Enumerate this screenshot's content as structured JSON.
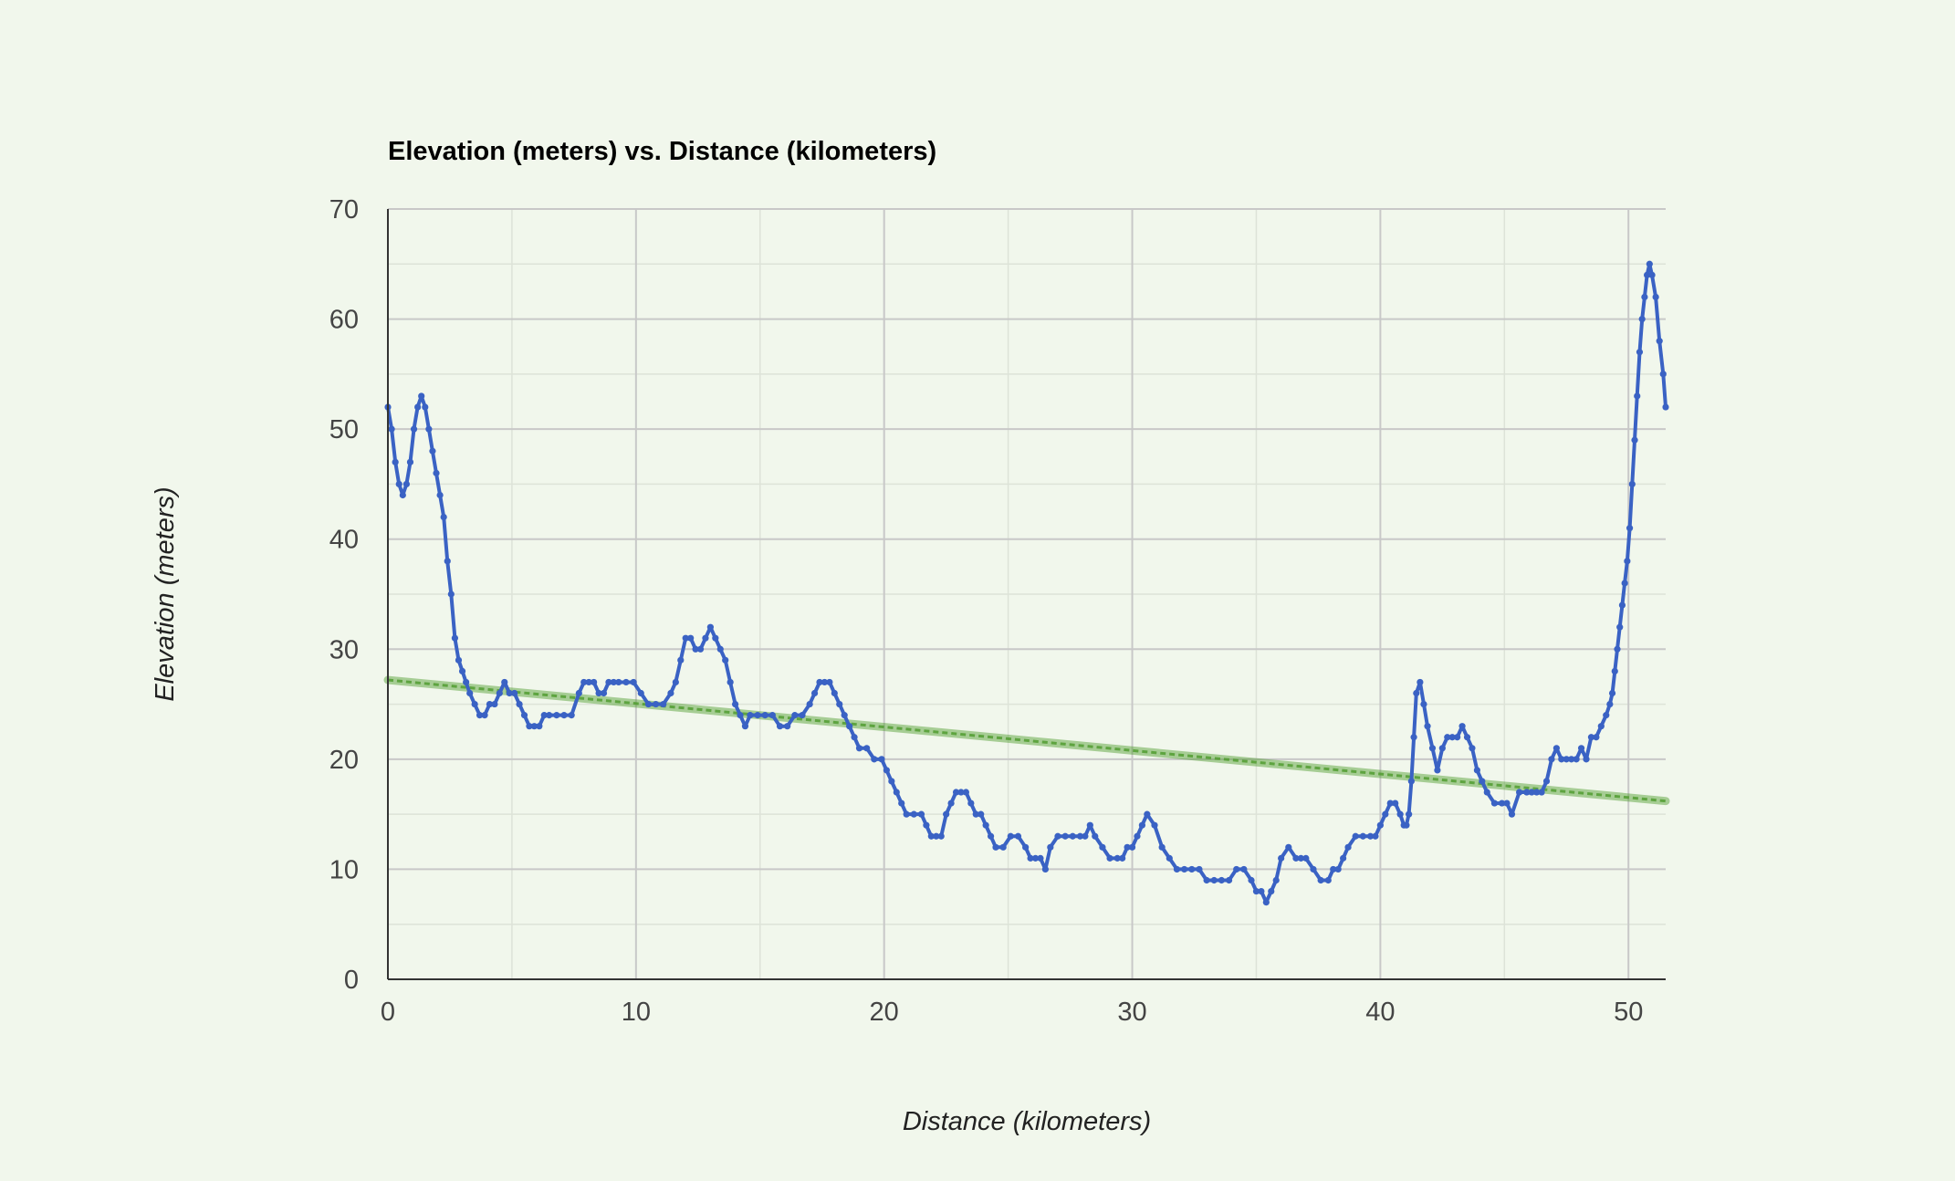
{
  "chart_data": {
    "type": "line",
    "title": "Elevation (meters) vs. Distance (kilometers)",
    "xlabel": "Distance (kilometers)",
    "ylabel": "Elevation (meters)",
    "xlim": [
      0,
      51.5
    ],
    "ylim": [
      0,
      70
    ],
    "x_ticks": [
      0,
      10,
      20,
      30,
      40,
      50
    ],
    "y_ticks": [
      0,
      10,
      20,
      30,
      40,
      50,
      60,
      70
    ],
    "grid": true,
    "legend": "none",
    "colors": {
      "series": "#3a62c4",
      "trendline": "#4c9a2a",
      "background": "#f1f7ec",
      "grid_major": "#c8c8c8",
      "grid_minor": "#dde3d8"
    },
    "series": [
      {
        "x": [
          0,
          0.15,
          0.3,
          0.45,
          0.6,
          0.75,
          0.9,
          1.05,
          1.2,
          1.35,
          1.5,
          1.65,
          1.8,
          1.95,
          2.1,
          2.25,
          2.4,
          2.55,
          2.7,
          2.85,
          3.0,
          3.15,
          3.3,
          3.5,
          3.7,
          3.9,
          4.1,
          4.3,
          4.5,
          4.7,
          4.9,
          5.1,
          5.3,
          5.5,
          5.7,
          5.9,
          6.1,
          6.3,
          6.5,
          6.8,
          7.1,
          7.4,
          7.7,
          7.9,
          8.1,
          8.3,
          8.5,
          8.7,
          8.9,
          9.1,
          9.3,
          9.6,
          9.9,
          10.2,
          10.5,
          10.8,
          11.1,
          11.4,
          11.6,
          11.8,
          12.0,
          12.2,
          12.4,
          12.6,
          12.8,
          13.0,
          13.2,
          13.4,
          13.6,
          13.8,
          14.0,
          14.2,
          14.4,
          14.6,
          14.9,
          15.2,
          15.5,
          15.8,
          16.1,
          16.4,
          16.7,
          17.0,
          17.2,
          17.4,
          17.6,
          17.8,
          18.0,
          18.2,
          18.4,
          18.6,
          18.8,
          19.0,
          19.3,
          19.6,
          19.9,
          20.1,
          20.3,
          20.5,
          20.7,
          20.9,
          21.2,
          21.5,
          21.7,
          21.9,
          22.1,
          22.3,
          22.5,
          22.7,
          22.9,
          23.1,
          23.3,
          23.5,
          23.7,
          23.9,
          24.1,
          24.3,
          24.5,
          24.8,
          25.1,
          25.4,
          25.7,
          25.9,
          26.1,
          26.3,
          26.5,
          26.7,
          27.0,
          27.3,
          27.6,
          27.9,
          28.1,
          28.3,
          28.5,
          28.8,
          29.1,
          29.4,
          29.6,
          29.8,
          30.0,
          30.2,
          30.4,
          30.6,
          30.9,
          31.2,
          31.5,
          31.8,
          32.1,
          32.4,
          32.7,
          33.0,
          33.3,
          33.6,
          33.9,
          34.2,
          34.5,
          34.8,
          35.0,
          35.2,
          35.4,
          35.6,
          35.8,
          36.0,
          36.3,
          36.6,
          36.8,
          37.0,
          37.3,
          37.6,
          37.9,
          38.1,
          38.3,
          38.5,
          38.7,
          39.0,
          39.3,
          39.6,
          39.8,
          40.0,
          40.2,
          40.4,
          40.6,
          40.8,
          40.95,
          41.05,
          41.15,
          41.25,
          41.35,
          41.45,
          41.6,
          41.75,
          41.9,
          42.1,
          42.3,
          42.5,
          42.7,
          42.9,
          43.1,
          43.3,
          43.5,
          43.7,
          43.9,
          44.1,
          44.3,
          44.6,
          44.9,
          45.1,
          45.3,
          45.6,
          45.9,
          46.1,
          46.3,
          46.5,
          46.7,
          46.9,
          47.1,
          47.3,
          47.5,
          47.7,
          47.9,
          48.1,
          48.3,
          48.5,
          48.7,
          48.9,
          49.1,
          49.25,
          49.35,
          49.45,
          49.55,
          49.65,
          49.75,
          49.85,
          49.95,
          50.05,
          50.15,
          50.25,
          50.35,
          50.45,
          50.55,
          50.65,
          50.75,
          50.85,
          50.95,
          51.1,
          51.25,
          51.4,
          51.5
        ],
        "values": [
          52,
          50,
          47,
          45,
          44,
          45,
          47,
          50,
          52,
          53,
          52,
          50,
          48,
          46,
          44,
          42,
          38,
          35,
          31,
          29,
          28,
          27,
          26,
          25,
          24,
          24,
          25,
          25,
          26,
          27,
          26,
          26,
          25,
          24,
          23,
          23,
          23,
          24,
          24,
          24,
          24,
          24,
          26,
          27,
          27,
          27,
          26,
          26,
          27,
          27,
          27,
          27,
          27,
          26,
          25,
          25,
          25,
          26,
          27,
          29,
          31,
          31,
          30,
          30,
          31,
          32,
          31,
          30,
          29,
          27,
          25,
          24,
          23,
          24,
          24,
          24,
          24,
          23,
          23,
          24,
          24,
          25,
          26,
          27,
          27,
          27,
          26,
          25,
          24,
          23,
          22,
          21,
          21,
          20,
          20,
          19,
          18,
          17,
          16,
          15,
          15,
          15,
          14,
          13,
          13,
          13,
          15,
          16,
          17,
          17,
          17,
          16,
          15,
          15,
          14,
          13,
          12,
          12,
          13,
          13,
          12,
          11,
          11,
          11,
          10,
          12,
          13,
          13,
          13,
          13,
          13,
          14,
          13,
          12,
          11,
          11,
          11,
          12,
          12,
          13,
          14,
          15,
          14,
          12,
          11,
          10,
          10,
          10,
          10,
          9,
          9,
          9,
          9,
          10,
          10,
          9,
          8,
          8,
          7,
          8,
          9,
          11,
          12,
          11,
          11,
          11,
          10,
          9,
          9,
          10,
          10,
          11,
          12,
          13,
          13,
          13,
          13,
          14,
          15,
          16,
          16,
          15,
          14,
          14,
          15,
          18,
          22,
          26,
          27,
          25,
          23,
          21,
          19,
          21,
          22,
          22,
          22,
          23,
          22,
          21,
          19,
          18,
          17,
          16,
          16,
          16,
          15,
          17,
          17,
          17,
          17,
          17,
          18,
          20,
          21,
          20,
          20,
          20,
          20,
          21,
          20,
          22,
          22,
          23,
          24,
          25,
          26,
          28,
          30,
          32,
          34,
          36,
          38,
          41,
          45,
          49,
          53,
          57,
          60,
          62,
          64,
          65,
          64,
          62,
          58,
          55,
          52
        ]
      }
    ],
    "trendline": {
      "x": [
        0,
        51.5
      ],
      "values": [
        27.2,
        16.2
      ]
    }
  }
}
